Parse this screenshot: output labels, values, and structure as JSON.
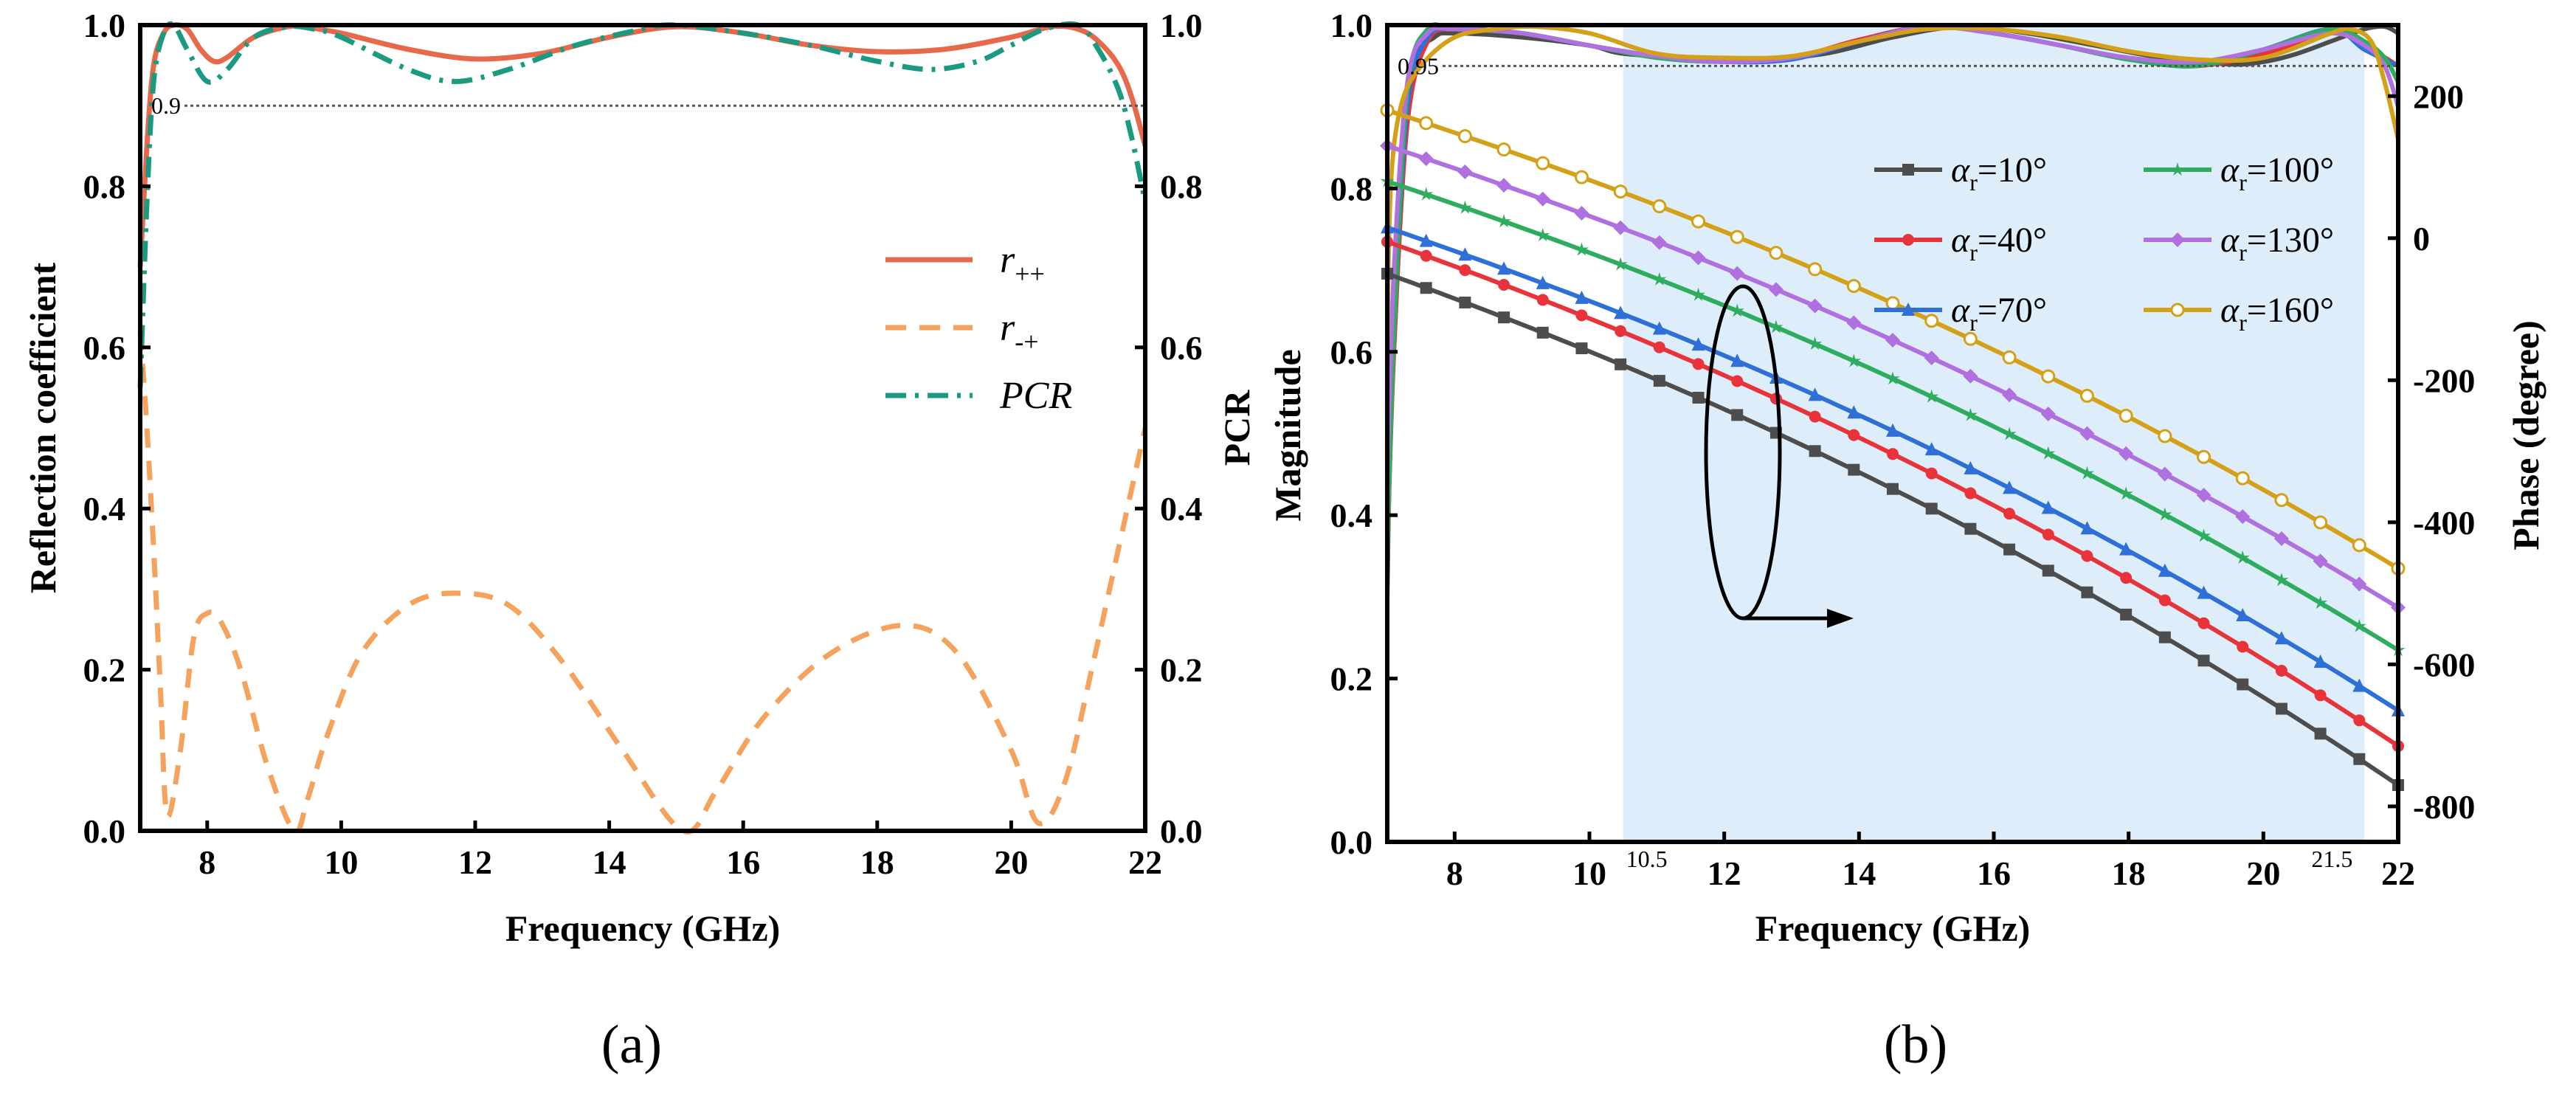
{
  "chart_data": [
    {
      "panel_label": "(a)",
      "type": "line",
      "xlabel": "Frequency (GHz)",
      "ylabel": "Reflection coefficient",
      "y2label": "PCR",
      "xlim": [
        7,
        22
      ],
      "ylim": [
        0,
        1
      ],
      "y2lim": [
        0,
        1
      ],
      "xticks": [
        "8",
        "10",
        "12",
        "14",
        "16",
        "18",
        "20",
        "22"
      ],
      "yticks": [
        "0.0",
        "0.2",
        "0.4",
        "0.6",
        "0.8",
        "1.0"
      ],
      "y2ticks": [
        "0.0",
        "0.2",
        "0.4",
        "0.6",
        "0.8",
        "1.0"
      ],
      "reference_line": {
        "y": 0.9,
        "label": "0.9"
      },
      "series": [
        {
          "name": "r++",
          "legend_main": "r",
          "legend_sub": "++",
          "color": "#e8684a",
          "style": "solid",
          "x": [
            7.0,
            7.1,
            7.2,
            7.35,
            7.5,
            7.7,
            7.9,
            8.1,
            8.3,
            8.7,
            9.2,
            9.5,
            10.0,
            11.0,
            12.0,
            13.0,
            14.0,
            15.0,
            16.0,
            17.0,
            18.0,
            19.0,
            20.0,
            20.6,
            21.0,
            21.3,
            21.6,
            21.8,
            22.0
          ],
          "y": [
            0.7,
            0.85,
            0.95,
            0.99,
            1.0,
            0.995,
            0.97,
            0.955,
            0.96,
            0.985,
            0.998,
            0.997,
            0.99,
            0.97,
            0.958,
            0.965,
            0.985,
            0.998,
            0.99,
            0.975,
            0.967,
            0.97,
            0.985,
            0.998,
            0.995,
            0.98,
            0.95,
            0.91,
            0.85
          ]
        },
        {
          "name": "r-+",
          "legend_main": "r",
          "legend_sub": "-+",
          "color": "#f5a25d",
          "style": "dashed",
          "x": [
            7.0,
            7.1,
            7.2,
            7.3,
            7.4,
            7.6,
            7.8,
            8.0,
            8.2,
            8.5,
            8.9,
            9.3,
            9.5,
            9.8,
            10.3,
            11.0,
            11.7,
            12.5,
            13.3,
            14.2,
            15.1,
            15.6,
            16.3,
            17.3,
            18.4,
            19.2,
            20.0,
            20.4,
            20.8,
            21.2,
            21.6,
            22.0
          ],
          "y": [
            0.62,
            0.5,
            0.35,
            0.18,
            0.02,
            0.1,
            0.24,
            0.27,
            0.26,
            0.2,
            0.08,
            0.0,
            0.04,
            0.12,
            0.22,
            0.28,
            0.295,
            0.28,
            0.21,
            0.1,
            0.0,
            0.05,
            0.14,
            0.22,
            0.255,
            0.22,
            0.1,
            0.01,
            0.06,
            0.2,
            0.35,
            0.5
          ]
        },
        {
          "name": "PCR",
          "legend_main": "PCR",
          "legend_sub": "",
          "color": "#1a9a80",
          "style": "dashdot",
          "x": [
            7.0,
            7.1,
            7.2,
            7.35,
            7.5,
            7.7,
            8.0,
            8.3,
            8.7,
            9.2,
            9.6,
            10.0,
            11.0,
            11.7,
            12.5,
            13.5,
            14.5,
            15.0,
            16.0,
            17.0,
            18.0,
            18.8,
            19.5,
            20.0,
            20.5,
            21.0,
            21.3,
            21.6,
            21.8,
            22.0
          ],
          "y": [
            0.55,
            0.78,
            0.93,
            0.99,
            1.0,
            0.97,
            0.93,
            0.945,
            0.985,
            0.998,
            0.995,
            0.985,
            0.945,
            0.93,
            0.945,
            0.975,
            0.995,
            1.0,
            0.99,
            0.975,
            0.955,
            0.945,
            0.955,
            0.975,
            0.995,
            1.0,
            0.97,
            0.92,
            0.86,
            0.78
          ]
        }
      ]
    },
    {
      "panel_label": "(b)",
      "type": "line",
      "xlabel": "Frequency (GHz)",
      "ylabel": "Magnitude",
      "y2label": "Phase (degree)",
      "xlim": [
        7,
        22
      ],
      "ylim": [
        0,
        1
      ],
      "y2lim": [
        -850,
        300
      ],
      "xticks": [
        "8",
        "10",
        "12",
        "14",
        "16",
        "18",
        "20",
        "22"
      ],
      "yticks": [
        "0.0",
        "0.2",
        "0.4",
        "0.6",
        "0.8",
        "1.0"
      ],
      "y2ticks": [
        "-800",
        "-600",
        "-400",
        "-200",
        "0",
        "200"
      ],
      "reference_line": {
        "y": 0.95,
        "label": "0.95"
      },
      "shaded_band": {
        "x0": 10.5,
        "x1": 21.5,
        "label_left": "10.5",
        "label_right": "21.5",
        "color": "#ddeefa"
      },
      "annotation": "ellipse with arrow pointing right (increasing αr)",
      "series": [
        {
          "name": "αr=10°",
          "legend_main": "α",
          "legend_sub": "r",
          "legend_rest": "=10°",
          "color": "#4d4d4d",
          "marker": "square",
          "mag_x": [
            7.0,
            7.05,
            7.2,
            7.4,
            7.7,
            8.0,
            9.0,
            10.0,
            10.5,
            11.5,
            12.5,
            13.5,
            14.5,
            15.5,
            16.5,
            17.5,
            18.5,
            19.5,
            20.0,
            20.5,
            21.0,
            21.5,
            21.8,
            22.0
          ],
          "mag_y": [
            0.3,
            0.5,
            0.8,
            0.95,
            0.985,
            0.99,
            0.985,
            0.975,
            0.965,
            0.96,
            0.958,
            0.965,
            0.985,
            0.998,
            0.99,
            0.975,
            0.96,
            0.952,
            0.955,
            0.965,
            0.98,
            0.995,
            0.998,
            0.99
          ],
          "phase": [
            -50,
            -770
          ]
        },
        {
          "name": "αr=40°",
          "legend_main": "α",
          "legend_sub": "r",
          "legend_rest": "=40°",
          "color": "#e8333a",
          "marker": "circle",
          "mag_x": [
            7.0,
            7.1,
            7.3,
            7.6,
            8.0,
            9.0,
            10.0,
            11.0,
            12.0,
            13.0,
            14.0,
            15.0,
            16.0,
            17.0,
            18.0,
            19.0,
            20.0,
            21.0,
            21.5,
            22.0
          ],
          "mag_y": [
            0.35,
            0.6,
            0.88,
            0.98,
            0.995,
            0.99,
            0.975,
            0.962,
            0.956,
            0.96,
            0.982,
            0.998,
            0.99,
            0.975,
            0.958,
            0.95,
            0.965,
            0.99,
            0.975,
            0.95
          ],
          "phase": [
            -5,
            -715
          ]
        },
        {
          "name": "αr=70°",
          "legend_main": "α",
          "legend_sub": "r",
          "legend_rest": "=70°",
          "color": "#2e6fd8",
          "marker": "triangle",
          "mag_x": [
            7.0,
            7.1,
            7.3,
            7.6,
            8.0,
            9.0,
            10.0,
            11.0,
            12.0,
            13.0,
            14.0,
            15.0,
            16.0,
            17.0,
            18.0,
            19.0,
            20.0,
            21.0,
            21.5,
            22.0
          ],
          "mag_y": [
            0.36,
            0.62,
            0.9,
            0.985,
            0.995,
            0.99,
            0.975,
            0.962,
            0.955,
            0.958,
            0.98,
            0.998,
            0.99,
            0.975,
            0.958,
            0.95,
            0.97,
            0.995,
            0.97,
            0.95
          ],
          "phase": [
            15,
            -665
          ]
        },
        {
          "name": "αr=100°",
          "legend_main": "α",
          "legend_sub": "r",
          "legend_rest": "=100°",
          "color": "#2fad5e",
          "marker": "star",
          "mag_x": [
            7.0,
            7.1,
            7.3,
            7.6,
            8.0,
            9.0,
            10.0,
            11.0,
            12.0,
            13.0,
            14.0,
            15.0,
            16.0,
            17.0,
            18.0,
            19.0,
            20.0,
            21.0,
            21.5,
            21.8,
            22.0
          ],
          "mag_y": [
            0.35,
            0.62,
            0.92,
            0.995,
            0.995,
            0.99,
            0.975,
            0.96,
            0.955,
            0.96,
            0.98,
            0.998,
            0.99,
            0.975,
            0.958,
            0.95,
            0.97,
            0.995,
            0.98,
            0.96,
            0.93
          ],
          "phase": [
            80,
            -580
          ]
        },
        {
          "name": "αr=130°",
          "legend_main": "α",
          "legend_sub": "r",
          "legend_rest": "=130°",
          "color": "#b070e0",
          "marker": "diamond",
          "mag_x": [
            7.0,
            7.1,
            7.3,
            7.6,
            8.0,
            9.0,
            10.0,
            11.0,
            12.0,
            13.0,
            14.0,
            15.0,
            16.0,
            17.0,
            18.0,
            19.0,
            20.0,
            21.0,
            21.5,
            21.8,
            22.0
          ],
          "mag_y": [
            0.45,
            0.7,
            0.93,
            0.99,
            0.995,
            0.99,
            0.975,
            0.962,
            0.955,
            0.96,
            0.98,
            0.998,
            0.99,
            0.975,
            0.96,
            0.955,
            0.97,
            0.99,
            0.975,
            0.95,
            0.9
          ],
          "phase": [
            130,
            -520
          ]
        },
        {
          "name": "αr=160°",
          "legend_main": "α",
          "legend_sub": "r",
          "legend_rest": "=160°",
          "color": "#d4a017",
          "marker": "open-circle",
          "mag_x": [
            7.0,
            7.05,
            7.2,
            7.5,
            8.0,
            8.6,
            9.2,
            10.0,
            11.0,
            12.0,
            13.0,
            14.0,
            15.0,
            16.0,
            17.0,
            18.0,
            19.0,
            20.0,
            21.0,
            21.3,
            21.6,
            21.8,
            22.0
          ],
          "mag_y": [
            0.6,
            0.8,
            0.9,
            0.95,
            0.985,
            0.995,
            0.998,
            0.99,
            0.965,
            0.96,
            0.962,
            0.98,
            0.995,
            0.995,
            0.985,
            0.968,
            0.958,
            0.96,
            0.99,
            0.995,
            0.98,
            0.93,
            0.86
          ],
          "phase": [
            180,
            -465
          ]
        }
      ]
    }
  ]
}
